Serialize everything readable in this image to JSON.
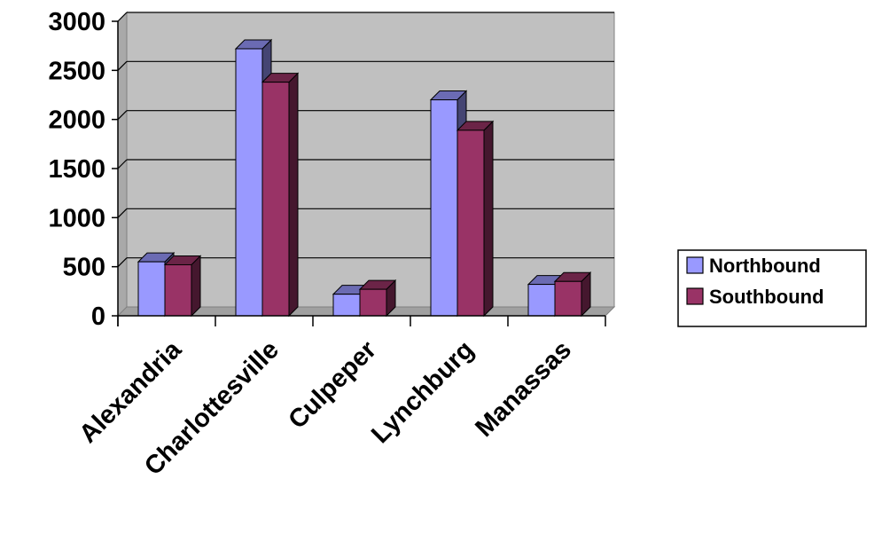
{
  "chart_data": {
    "type": "bar",
    "categories": [
      "Alexandria",
      "Charlottesville",
      "Culpeper",
      "Lynchburg",
      "Manassas"
    ],
    "series": [
      {
        "name": "Northbound",
        "values": [
          550,
          2720,
          220,
          2200,
          320
        ],
        "color": "#9999ff"
      },
      {
        "name": "Southbound",
        "values": [
          520,
          2380,
          270,
          1890,
          350
        ],
        "color": "#993366"
      }
    ],
    "ylim": [
      0,
      3000
    ],
    "yticks": [
      0,
      500,
      1000,
      1500,
      2000,
      2500,
      3000
    ],
    "grid": true,
    "legend_position": "right",
    "style": "3d-clustered-column",
    "wall_color": "#c0c0c0"
  }
}
